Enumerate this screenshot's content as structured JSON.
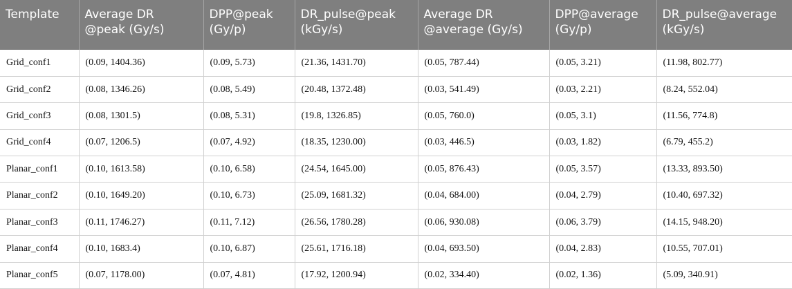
{
  "table": {
    "headers": [
      "Template",
      "Average DR\n@peak (Gy/s)",
      "DPP@peak\n(Gy/p)",
      "DR_pulse@peak\n(kGy/s)",
      "Average DR\n@average (Gy/s)",
      "DPP@average\n(Gy/p)",
      "DR_pulse@average\n(kGy/s)"
    ],
    "rows": [
      [
        "Grid_conf1",
        "(0.09, 1404.36)",
        "(0.09, 5.73)",
        "(21.36, 1431.70)",
        "(0.05, 787.44)",
        "(0.05, 3.21)",
        "(11.98, 802.77)"
      ],
      [
        "Grid_conf2",
        "(0.08, 1346.26)",
        "(0.08, 5.49)",
        "(20.48, 1372.48)",
        "(0.03, 541.49)",
        "(0.03, 2.21)",
        "(8.24, 552.04)"
      ],
      [
        "Grid_conf3",
        "(0.08, 1301.5)",
        "(0.08, 5.31)",
        "(19.8, 1326.85)",
        "(0.05, 760.0)",
        "(0.05, 3.1)",
        "(11.56, 774.8)"
      ],
      [
        "Grid_conf4",
        "(0.07, 1206.5)",
        "(0.07, 4.92)",
        "(18.35, 1230.00)",
        "(0.03, 446.5)",
        "(0.03, 1.82)",
        "(6.79, 455.2)"
      ],
      [
        "Planar_conf1",
        "(0.10, 1613.58)",
        "(0.10, 6.58)",
        "(24.54, 1645.00)",
        "(0.05, 876.43)",
        "(0.05, 3.57)",
        "(13.33, 893.50)"
      ],
      [
        "Planar_conf2",
        "(0.10, 1649.20)",
        "(0.10, 6.73)",
        "(25.09, 1681.32)",
        "(0.04, 684.00)",
        "(0.04, 2.79)",
        "(10.40, 697.32)"
      ],
      [
        "Planar_conf3",
        "(0.11, 1746.27)",
        "(0.11, 7.12)",
        "(26.56, 1780.28)",
        "(0.06, 930.08)",
        "(0.06, 3.79)",
        "(14.15, 948.20)"
      ],
      [
        "Planar_conf4",
        "(0.10, 1683.4)",
        "(0.10, 6.87)",
        "(25.61, 1716.18)",
        "(0.04, 693.50)",
        "(0.04, 2.83)",
        "(10.55, 707.01)"
      ],
      [
        "Planar_conf5",
        "(0.07, 1178.00)",
        "(0.07, 4.81)",
        "(17.92, 1200.94)",
        "(0.02, 334.40)",
        "(0.02, 1.36)",
        "(5.09, 340.91)"
      ]
    ]
  }
}
